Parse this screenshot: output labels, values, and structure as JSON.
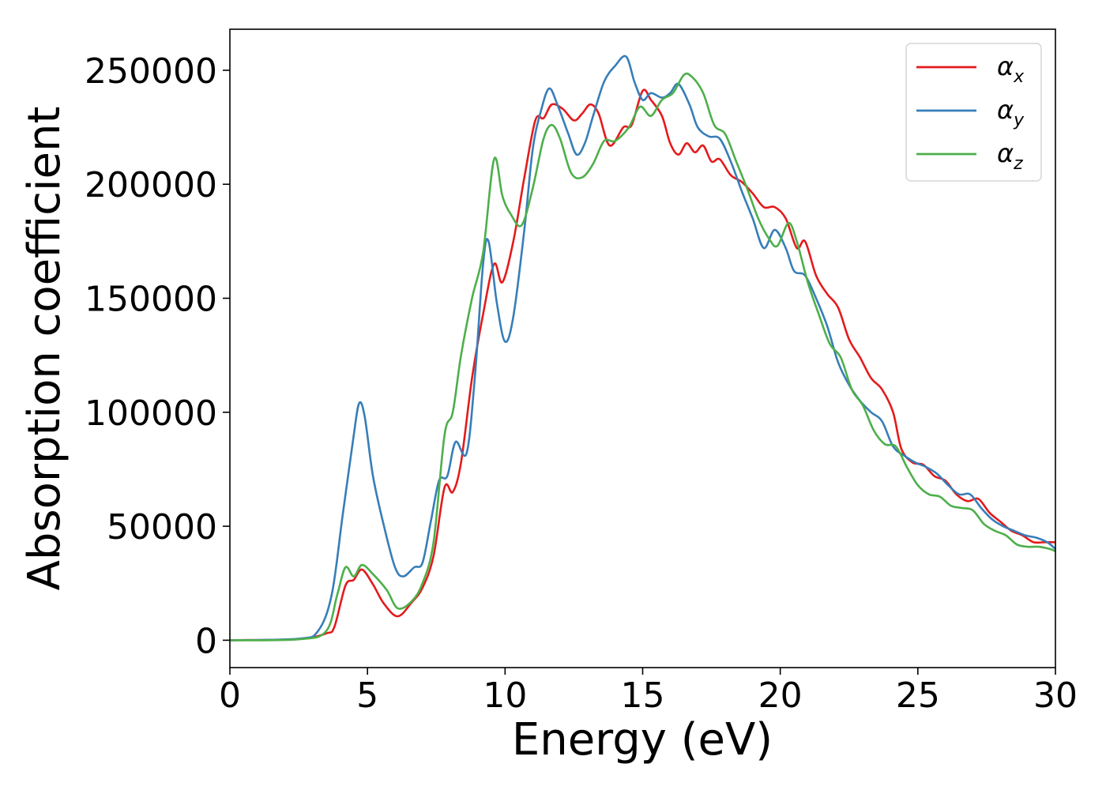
{
  "chart_data": {
    "type": "line",
    "title": "",
    "xlabel": "Energy (eV)",
    "ylabel": "Absorption coefficient",
    "xlim": [
      0,
      30
    ],
    "ylim": [
      -12000,
      268000
    ],
    "xticks": [
      0,
      5,
      10,
      15,
      20,
      25,
      30
    ],
    "xtick_labels": [
      "0",
      "5",
      "10",
      "15",
      "20",
      "25",
      "30"
    ],
    "yticks": [
      0,
      50000,
      100000,
      150000,
      200000,
      250000
    ],
    "ytick_labels": [
      "0",
      "50000",
      "100000",
      "150000",
      "200000",
      "250000"
    ],
    "grid": false,
    "legend_position": "top-right",
    "series": [
      {
        "name": "αx",
        "name_base": "α",
        "name_sub": "x",
        "color": "#e41a1c",
        "points": [
          [
            0,
            0
          ],
          [
            2.5,
            500
          ],
          [
            3.5,
            3000
          ],
          [
            3.8,
            6000
          ],
          [
            4.2,
            24000
          ],
          [
            4.5,
            26500
          ],
          [
            4.8,
            31000
          ],
          [
            5.2,
            24500
          ],
          [
            5.6,
            16000
          ],
          [
            6.1,
            10500
          ],
          [
            6.6,
            16500
          ],
          [
            7.0,
            23000
          ],
          [
            7.4,
            37000
          ],
          [
            7.8,
            67000
          ],
          [
            8.1,
            65000
          ],
          [
            8.4,
            78000
          ],
          [
            8.8,
            115000
          ],
          [
            9.2,
            143000
          ],
          [
            9.6,
            165000
          ],
          [
            9.9,
            157000
          ],
          [
            10.3,
            175000
          ],
          [
            10.7,
            203000
          ],
          [
            11.1,
            228000
          ],
          [
            11.4,
            229000
          ],
          [
            11.7,
            235000
          ],
          [
            12.1,
            233000
          ],
          [
            12.5,
            228000
          ],
          [
            12.8,
            231000
          ],
          [
            13.1,
            235000
          ],
          [
            13.4,
            231000
          ],
          [
            13.8,
            217000
          ],
          [
            14.3,
            225000
          ],
          [
            14.6,
            226000
          ],
          [
            15.0,
            241000
          ],
          [
            15.3,
            237000
          ],
          [
            15.7,
            230000
          ],
          [
            16.0,
            218000
          ],
          [
            16.3,
            213000
          ],
          [
            16.6,
            218000
          ],
          [
            16.9,
            214000
          ],
          [
            17.2,
            217000
          ],
          [
            17.5,
            210000
          ],
          [
            17.8,
            211000
          ],
          [
            18.2,
            204000
          ],
          [
            18.6,
            201000
          ],
          [
            19.0,
            196000
          ],
          [
            19.4,
            190000
          ],
          [
            19.8,
            190000
          ],
          [
            20.2,
            185000
          ],
          [
            20.6,
            172000
          ],
          [
            20.9,
            175000
          ],
          [
            21.3,
            160000
          ],
          [
            21.7,
            152000
          ],
          [
            22.1,
            146000
          ],
          [
            22.5,
            132000
          ],
          [
            22.9,
            124000
          ],
          [
            23.3,
            115000
          ],
          [
            23.7,
            110000
          ],
          [
            24.1,
            100000
          ],
          [
            24.4,
            84000
          ],
          [
            24.8,
            78000
          ],
          [
            25.2,
            77000
          ],
          [
            25.6,
            72000
          ],
          [
            26.0,
            70000
          ],
          [
            26.4,
            64000
          ],
          [
            26.8,
            61000
          ],
          [
            27.2,
            62000
          ],
          [
            27.6,
            56000
          ],
          [
            28.0,
            52000
          ],
          [
            28.4,
            48000
          ],
          [
            28.8,
            46000
          ],
          [
            29.2,
            43000
          ],
          [
            29.6,
            43000
          ],
          [
            30.0,
            43000
          ]
        ]
      },
      {
        "name": "αy",
        "name_base": "α",
        "name_sub": "y",
        "color": "#377eb8",
        "points": [
          [
            0,
            0
          ],
          [
            2.5,
            700
          ],
          [
            3.2,
            4000
          ],
          [
            3.7,
            20000
          ],
          [
            4.1,
            55000
          ],
          [
            4.5,
            90000
          ],
          [
            4.7,
            104000
          ],
          [
            4.9,
            98000
          ],
          [
            5.2,
            72000
          ],
          [
            5.6,
            50000
          ],
          [
            6.0,
            32000
          ],
          [
            6.3,
            28000
          ],
          [
            6.7,
            32000
          ],
          [
            7.0,
            34000
          ],
          [
            7.3,
            52000
          ],
          [
            7.6,
            70000
          ],
          [
            7.9,
            72000
          ],
          [
            8.2,
            87000
          ],
          [
            8.6,
            82000
          ],
          [
            8.9,
            115000
          ],
          [
            9.2,
            165000
          ],
          [
            9.4,
            175000
          ],
          [
            9.7,
            148000
          ],
          [
            10.0,
            131000
          ],
          [
            10.3,
            142000
          ],
          [
            10.7,
            180000
          ],
          [
            11.0,
            215000
          ],
          [
            11.3,
            232000
          ],
          [
            11.6,
            242000
          ],
          [
            11.9,
            235000
          ],
          [
            12.3,
            222000
          ],
          [
            12.6,
            213000
          ],
          [
            12.9,
            218000
          ],
          [
            13.2,
            230000
          ],
          [
            13.6,
            245000
          ],
          [
            14.0,
            252000
          ],
          [
            14.4,
            256000
          ],
          [
            14.7,
            245000
          ],
          [
            15.0,
            237000
          ],
          [
            15.3,
            240000
          ],
          [
            15.7,
            238000
          ],
          [
            16.0,
            240000
          ],
          [
            16.3,
            244000
          ],
          [
            16.7,
            235000
          ],
          [
            17.0,
            225000
          ],
          [
            17.4,
            221000
          ],
          [
            17.8,
            220000
          ],
          [
            18.2,
            210000
          ],
          [
            18.6,
            197000
          ],
          [
            19.0,
            185000
          ],
          [
            19.4,
            172000
          ],
          [
            19.8,
            180000
          ],
          [
            20.2,
            172000
          ],
          [
            20.5,
            162000
          ],
          [
            20.9,
            160000
          ],
          [
            21.3,
            150000
          ],
          [
            21.7,
            138000
          ],
          [
            22.1,
            122000
          ],
          [
            22.5,
            112000
          ],
          [
            22.9,
            105000
          ],
          [
            23.3,
            100000
          ],
          [
            23.7,
            96000
          ],
          [
            24.1,
            85000
          ],
          [
            24.5,
            81000
          ],
          [
            24.9,
            78000
          ],
          [
            25.3,
            76000
          ],
          [
            25.7,
            73000
          ],
          [
            26.1,
            68000
          ],
          [
            26.5,
            64000
          ],
          [
            26.9,
            64000
          ],
          [
            27.3,
            58000
          ],
          [
            27.7,
            53000
          ],
          [
            28.1,
            50000
          ],
          [
            28.5,
            48000
          ],
          [
            28.9,
            46000
          ],
          [
            29.3,
            45000
          ],
          [
            29.7,
            43000
          ],
          [
            30.0,
            40000
          ]
        ]
      },
      {
        "name": "αz",
        "name_base": "α",
        "name_sub": "z",
        "color": "#4daf4a",
        "points": [
          [
            0,
            0
          ],
          [
            2.5,
            400
          ],
          [
            3.5,
            4000
          ],
          [
            3.9,
            20000
          ],
          [
            4.2,
            32000
          ],
          [
            4.5,
            28000
          ],
          [
            4.8,
            33000
          ],
          [
            5.2,
            29000
          ],
          [
            5.7,
            22000
          ],
          [
            6.1,
            14000
          ],
          [
            6.6,
            17000
          ],
          [
            7.0,
            25000
          ],
          [
            7.4,
            43000
          ],
          [
            7.8,
            90000
          ],
          [
            8.1,
            100000
          ],
          [
            8.4,
            125000
          ],
          [
            8.8,
            150000
          ],
          [
            9.2,
            170000
          ],
          [
            9.6,
            211000
          ],
          [
            9.9,
            195000
          ],
          [
            10.2,
            187000
          ],
          [
            10.6,
            182000
          ],
          [
            11.0,
            198000
          ],
          [
            11.4,
            220000
          ],
          [
            11.7,
            226000
          ],
          [
            12.0,
            220000
          ],
          [
            12.4,
            205000
          ],
          [
            12.8,
            203000
          ],
          [
            13.2,
            209000
          ],
          [
            13.6,
            219000
          ],
          [
            14.0,
            219000
          ],
          [
            14.5,
            225000
          ],
          [
            14.9,
            234000
          ],
          [
            15.3,
            230000
          ],
          [
            15.7,
            237000
          ],
          [
            16.1,
            240000
          ],
          [
            16.5,
            248000
          ],
          [
            16.8,
            247000
          ],
          [
            17.2,
            240000
          ],
          [
            17.6,
            226000
          ],
          [
            18.0,
            222000
          ],
          [
            18.4,
            210000
          ],
          [
            18.8,
            198000
          ],
          [
            19.2,
            185000
          ],
          [
            19.6,
            176000
          ],
          [
            19.9,
            173000
          ],
          [
            20.3,
            183000
          ],
          [
            20.6,
            175000
          ],
          [
            21.0,
            157000
          ],
          [
            21.4,
            143000
          ],
          [
            21.8,
            130000
          ],
          [
            22.2,
            124000
          ],
          [
            22.6,
            110000
          ],
          [
            23.0,
            103000
          ],
          [
            23.4,
            92000
          ],
          [
            23.8,
            86000
          ],
          [
            24.2,
            85000
          ],
          [
            24.6,
            76000
          ],
          [
            25.0,
            68000
          ],
          [
            25.4,
            64000
          ],
          [
            25.8,
            63000
          ],
          [
            26.2,
            59000
          ],
          [
            26.6,
            58000
          ],
          [
            27.0,
            57000
          ],
          [
            27.4,
            51000
          ],
          [
            27.8,
            48000
          ],
          [
            28.2,
            46000
          ],
          [
            28.6,
            42000
          ],
          [
            29.0,
            41000
          ],
          [
            29.4,
            41000
          ],
          [
            29.8,
            40000
          ],
          [
            30.0,
            39000
          ]
        ]
      }
    ]
  }
}
